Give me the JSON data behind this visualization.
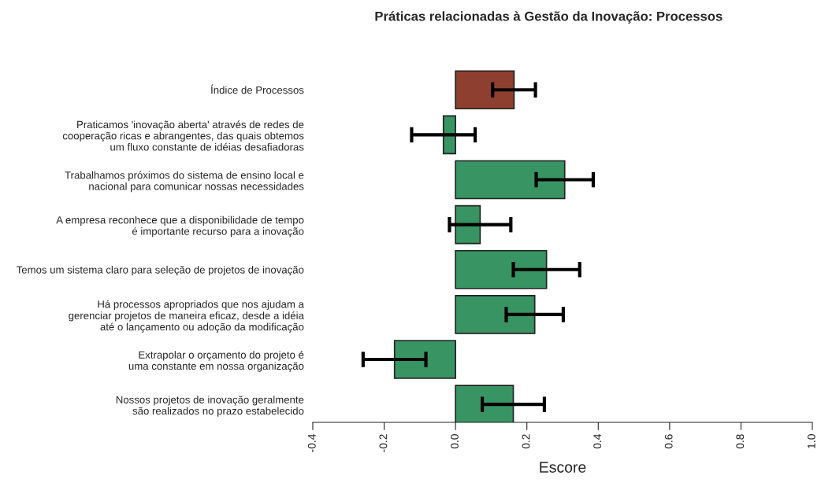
{
  "chart_data": {
    "type": "bar",
    "orientation": "horizontal",
    "title": "Práticas relacionadas à Gestão da Inovação: Processos",
    "xlabel": "Escore",
    "categories": [
      "Índice de Processos",
      "Praticamos 'inovação aberta' através de redes de\ncooperação ricas e abrangentes, das quais obtemos\num fluxo constante de idéias desafiadoras",
      "Trabalhamos próximos do sistema de ensino local e\nnacional para comunicar nossas necessidades",
      "A empresa reconhece que a disponibilidade de tempo\né importante recurso para a inovação",
      "Temos um sistema claro para seleção de projetos de inovação",
      "Há processos apropriados que nos ajudam a\ngerenciar projetos de maneira eficaz, desde a idéia\naté o lançamento ou adoção da modificação",
      "Extrapolar o orçamento do projeto é\numa constante em nossa organização",
      "Nossos projetos de inovação geralmente\nsão realizados no prazo estabelecido"
    ],
    "values": [
      0.164,
      -0.034,
      0.306,
      0.069,
      0.255,
      0.222,
      -0.171,
      0.162
    ],
    "errors": [
      0.06,
      0.089,
      0.08,
      0.086,
      0.093,
      0.08,
      0.088,
      0.087
    ],
    "colors": [
      "#8e3f2f",
      "#389462",
      "#389462",
      "#389462",
      "#389462",
      "#389462",
      "#389462",
      "#389462"
    ],
    "xlim": [
      -0.4,
      1.0
    ],
    "xticks": [
      {
        "value": -0.4,
        "label": "-0.4"
      },
      {
        "value": -0.2,
        "label": "-0.2"
      },
      {
        "value": 0.0,
        "label": "0.0"
      },
      {
        "value": 0.2,
        "label": "0.2"
      },
      {
        "value": 0.4,
        "label": "0.4"
      },
      {
        "value": 0.6,
        "label": "0.6"
      },
      {
        "value": 0.8,
        "label": "0.8"
      },
      {
        "value": 1.0,
        "label": "1.0"
      }
    ],
    "grid": false,
    "legend": false
  }
}
